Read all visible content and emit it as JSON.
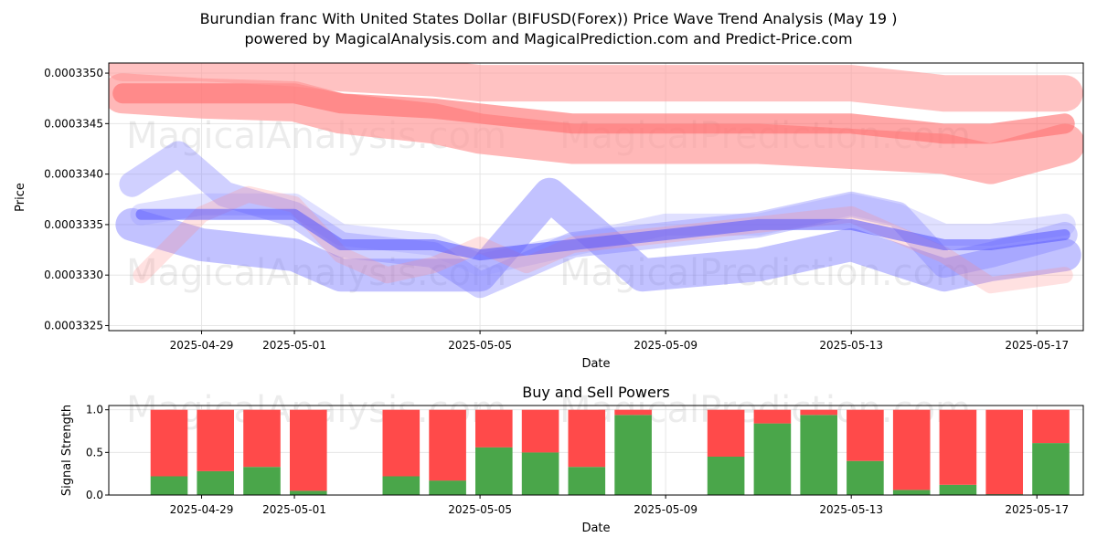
{
  "title_line1": "Burundian franc With United States Dollar (BIFUSD(Forex)) Price Wave Trend Analysis (May 19 )",
  "title_line2": "powered by MagicalAnalysis.com and MagicalPrediction.com and Predict-Price.com",
  "watermarks": [
    "MagicalAnalysis.com",
    "MagicalPrediction.com"
  ],
  "chart_data": [
    {
      "type": "line",
      "title": "",
      "xlabel": "Date",
      "ylabel": "Price",
      "x_range_days": [
        -2.0,
        19.0
      ],
      "date_origin": "2025-04-29",
      "ylim": [
        0.00033245,
        0.0003351
      ],
      "yticks": [
        {
          "value": 0.0003325,
          "label": "0.0003325"
        },
        {
          "value": 0.000333,
          "label": "0.0003330"
        },
        {
          "value": 0.0003335,
          "label": "0.0003335"
        },
        {
          "value": 0.000334,
          "label": "0.0003340"
        },
        {
          "value": 0.0003345,
          "label": "0.0003345"
        },
        {
          "value": 0.000335,
          "label": "0.0003350"
        }
      ],
      "xticks": [
        {
          "day": 0,
          "label": "2025-04-29"
        },
        {
          "day": 2,
          "label": "2025-05-01"
        },
        {
          "day": 6,
          "label": "2025-05-05"
        },
        {
          "day": 10,
          "label": "2025-05-09"
        },
        {
          "day": 14,
          "label": "2025-05-13"
        },
        {
          "day": 18,
          "label": "2025-05-17"
        }
      ],
      "grid": true,
      "series": [
        {
          "name": "upper-band-outer",
          "color": "#ff9a9a",
          "opacity": 0.7,
          "width": 44,
          "x": [
            -1.7,
            0,
            2,
            3,
            5,
            6,
            8,
            10,
            12,
            14,
            16,
            17,
            18.6
          ],
          "values": [
            0.0003348,
            0.00033475,
            0.00033472,
            0.0003346,
            0.0003345,
            0.0003344,
            0.0003343,
            0.0003343,
            0.0003343,
            0.00033425,
            0.0003342,
            0.0003341,
            0.0003343
          ]
        },
        {
          "name": "upper-band-mid",
          "color": "#ff6b6b",
          "opacity": 0.6,
          "width": 22,
          "x": [
            -1.7,
            0,
            2,
            3,
            5,
            6,
            8,
            10,
            12,
            14,
            16,
            17,
            18.6
          ],
          "values": [
            0.0003348,
            0.0003348,
            0.0003348,
            0.0003347,
            0.00033465,
            0.0003346,
            0.0003345,
            0.0003345,
            0.0003345,
            0.0003345,
            0.0003344,
            0.0003344,
            0.0003345
          ]
        },
        {
          "name": "upper-band-top",
          "color": "#ff9a9a",
          "opacity": 0.6,
          "width": 40,
          "x": [
            -1.7,
            0,
            2,
            3,
            5,
            6,
            8,
            10,
            12,
            14,
            16,
            17,
            18.6
          ],
          "values": [
            0.0003351,
            0.0003351,
            0.00033505,
            0.000335,
            0.00033495,
            0.0003349,
            0.0003349,
            0.0003349,
            0.0003349,
            0.0003349,
            0.0003348,
            0.0003348,
            0.0003348
          ]
        },
        {
          "name": "lower-wave-1",
          "color": "#7777ff",
          "opacity": 0.45,
          "width": 36,
          "x": [
            -1.5,
            0,
            2,
            3,
            5,
            6,
            7.5,
            9.5,
            12,
            14,
            16,
            17,
            18.6
          ],
          "values": [
            0.0003335,
            0.0003333,
            0.0003332,
            0.000333,
            0.000333,
            0.000333,
            0.0003338,
            0.000333,
            0.0003331,
            0.0003333,
            0.000333,
            0.0003331,
            0.0003332
          ]
        },
        {
          "name": "lower-wave-2",
          "color": "#7777ff",
          "opacity": 0.35,
          "width": 28,
          "x": [
            -1.5,
            -0.5,
            0.5,
            2,
            3,
            5,
            6,
            8,
            10,
            12,
            14,
            15,
            16,
            17,
            18.6
          ],
          "values": [
            0.0003339,
            0.0003342,
            0.0003338,
            0.0003336,
            0.0003333,
            0.0003332,
            0.0003329,
            0.0003333,
            0.0003334,
            0.0003335,
            0.0003337,
            0.0003336,
            0.0003331,
            0.0003332,
            0.0003334
          ]
        },
        {
          "name": "lower-wave-3",
          "color": "#9999ff",
          "opacity": 0.3,
          "width": 24,
          "x": [
            -1.3,
            0,
            2,
            3,
            5,
            6,
            8,
            10,
            12,
            14,
            15,
            16,
            17,
            18.6
          ],
          "values": [
            0.0003336,
            0.0003337,
            0.0003337,
            0.0003334,
            0.0003333,
            0.0003331,
            0.0003333,
            0.0003335,
            0.0003335,
            0.0003337,
            0.0003336,
            0.0003334,
            0.0003334,
            0.0003335
          ]
        },
        {
          "name": "lower-wave-red",
          "color": "#ff8888",
          "opacity": 0.25,
          "width": 18,
          "x": [
            -1.3,
            0,
            1,
            2,
            3,
            4,
            5,
            6,
            7,
            8,
            10,
            12,
            14,
            15,
            16,
            17,
            18.6
          ],
          "values": [
            0.000333,
            0.0003336,
            0.0003338,
            0.0003337,
            0.0003332,
            0.000333,
            0.0003331,
            0.0003333,
            0.0003331,
            0.0003333,
            0.0003334,
            0.0003335,
            0.0003336,
            0.0003334,
            0.0003332,
            0.0003329,
            0.000333
          ]
        },
        {
          "name": "lower-core",
          "color": "#5555ff",
          "opacity": 0.55,
          "width": 12,
          "x": [
            -1.3,
            0,
            2,
            3,
            5,
            6,
            8,
            10,
            12,
            14,
            15,
            16,
            17,
            18.6
          ],
          "values": [
            0.0003336,
            0.0003336,
            0.0003336,
            0.0003333,
            0.0003333,
            0.0003332,
            0.0003333,
            0.0003334,
            0.0003335,
            0.0003335,
            0.0003334,
            0.0003333,
            0.0003333,
            0.0003334
          ]
        }
      ]
    },
    {
      "type": "bar",
      "title": "Buy and Sell Powers",
      "xlabel": "Date",
      "ylabel": "Signal Strength",
      "x_range_days": [
        -2.0,
        19.0
      ],
      "date_origin": "2025-04-29",
      "ylim": [
        0,
        1.05
      ],
      "yticks": [
        {
          "value": 0.0,
          "label": "0.0"
        },
        {
          "value": 0.5,
          "label": "0.5"
        },
        {
          "value": 1.0,
          "label": "1.0"
        }
      ],
      "xticks": [
        {
          "day": 0,
          "label": "2025-04-29"
        },
        {
          "day": 2,
          "label": "2025-05-01"
        },
        {
          "day": 6,
          "label": "2025-05-05"
        },
        {
          "day": 10,
          "label": "2025-05-09"
        },
        {
          "day": 14,
          "label": "2025-05-13"
        },
        {
          "day": 18,
          "label": "2025-05-17"
        }
      ],
      "buy_color": "#4aa64a",
      "sell_color": "#ff4a4a",
      "days": [
        -0.7,
        0.3,
        1.3,
        2.3,
        4.3,
        5.3,
        6.3,
        7.3,
        8.3,
        9.3,
        11.3,
        12.3,
        13.3,
        14.3,
        15.3,
        16.3,
        17.3,
        18.3
      ],
      "buy": [
        0.22,
        0.28,
        0.33,
        0.05,
        0.22,
        0.17,
        0.56,
        0.5,
        0.33,
        0.94,
        0.45,
        0.84,
        0.94,
        0.4,
        0.06,
        0.12,
        0.01,
        0.61
      ],
      "sell": [
        0.78,
        0.72,
        0.67,
        0.95,
        0.78,
        0.83,
        0.44,
        0.5,
        0.67,
        0.06,
        0.55,
        0.16,
        0.06,
        0.6,
        0.94,
        0.88,
        0.99,
        0.39
      ]
    }
  ]
}
